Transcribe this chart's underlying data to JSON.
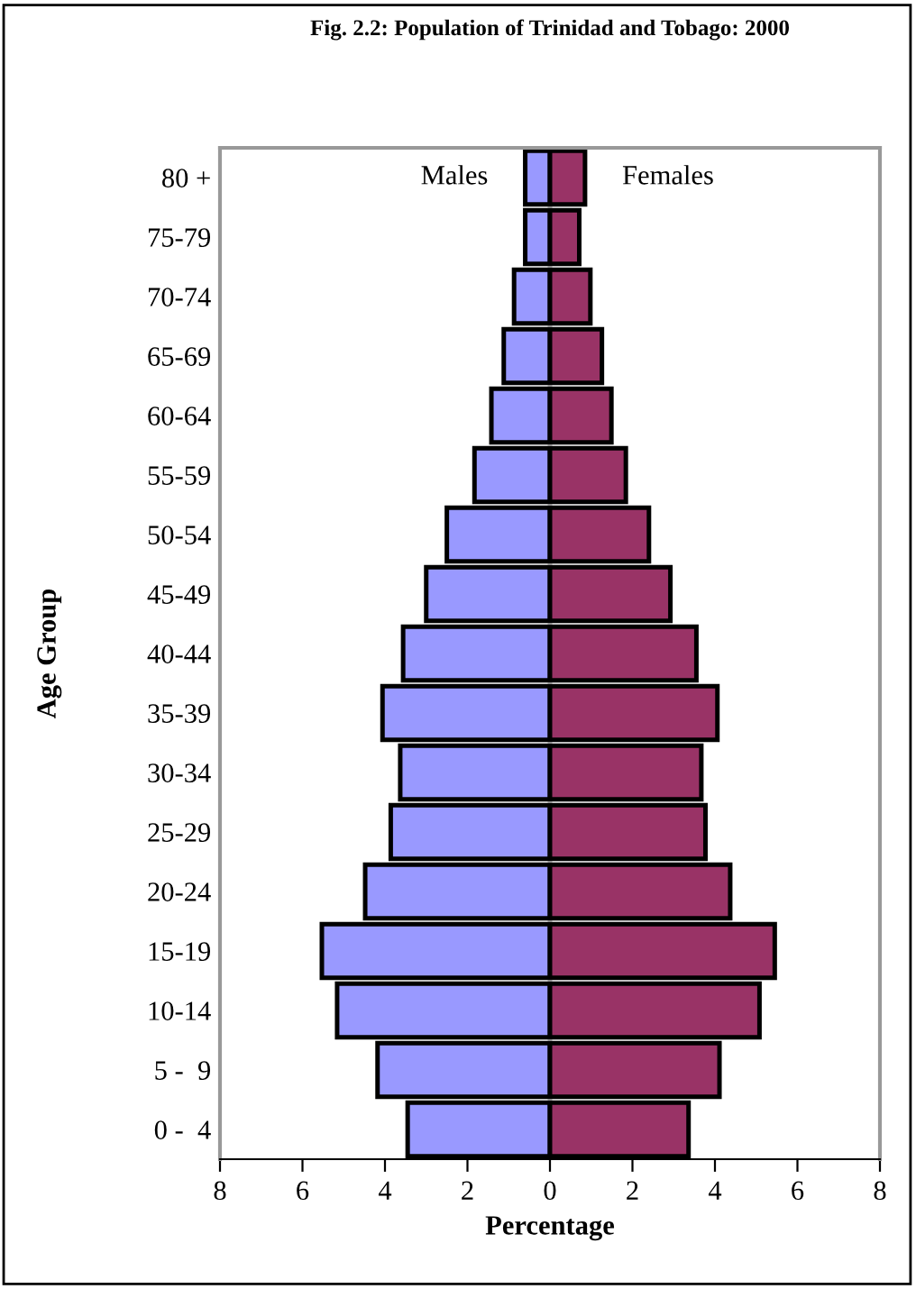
{
  "chart_data": {
    "type": "bar",
    "orientation": "horizontal",
    "stacked": true,
    "title": "Fig. 2.2: Population of Trinidad and Tobago: 2000",
    "xlabel": "Percentage",
    "ylabel": "Age Group",
    "categories": [
      "80 +",
      "75-79",
      "70-74",
      "65-69",
      "60-64",
      "55-59",
      "50-54",
      "45-49",
      "40-44",
      "35-39",
      "30-34",
      "25-29",
      "20-24",
      "15-19",
      "10-14",
      "5 -  9",
      "0 -  4"
    ],
    "series": [
      {
        "name": "Males",
        "color": "#9999ff",
        "values": [
          -0.6,
          -0.6,
          -0.87,
          -1.12,
          -1.42,
          -1.83,
          -2.5,
          -3.0,
          -3.56,
          -4.06,
          -3.63,
          -3.86,
          -4.48,
          -5.53,
          -5.16,
          -4.18,
          -3.45
        ]
      },
      {
        "name": "Females",
        "color": "#993366",
        "values": [
          0.85,
          0.71,
          0.98,
          1.26,
          1.49,
          1.84,
          2.4,
          2.92,
          3.55,
          4.06,
          3.67,
          3.77,
          4.37,
          5.45,
          5.08,
          4.11,
          3.36
        ]
      }
    ],
    "xlim": [
      -8,
      8
    ],
    "xticks": [
      {
        "value": -8,
        "label": "8"
      },
      {
        "value": -6,
        "label": "6"
      },
      {
        "value": -4,
        "label": "4"
      },
      {
        "value": -2,
        "label": "2"
      },
      0,
      2,
      4,
      6,
      8
    ],
    "grid": false,
    "legend": false
  }
}
